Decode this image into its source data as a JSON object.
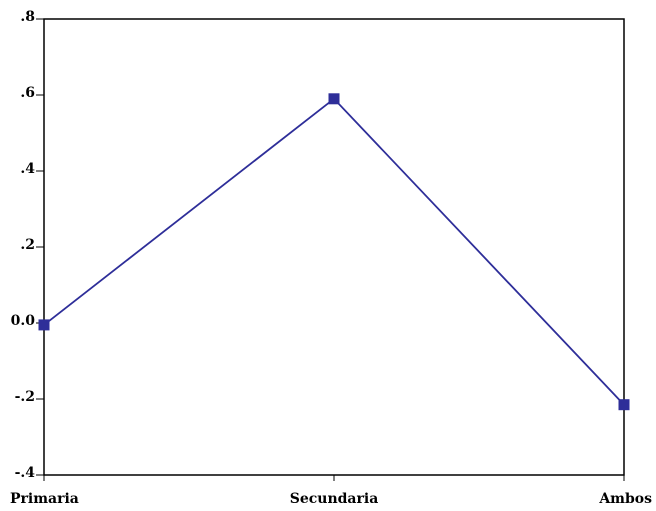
{
  "chart_data": {
    "type": "line",
    "categories": [
      "Primaria",
      "Secundaria",
      "Ambos"
    ],
    "series": [
      {
        "values": [
          -0.005,
          0.59,
          -0.215
        ],
        "color": "#2E2E99"
      }
    ],
    "ylim": [
      -0.4,
      0.8
    ],
    "yticks": [
      -0.4,
      -0.2,
      0.0,
      0.2,
      0.4,
      0.6,
      0.8
    ],
    "ytick_labels": [
      "-.4",
      "-.2",
      "0.0",
      ".2",
      ".4",
      ".6",
      ".8"
    ],
    "marker": "square",
    "grid": false
  }
}
